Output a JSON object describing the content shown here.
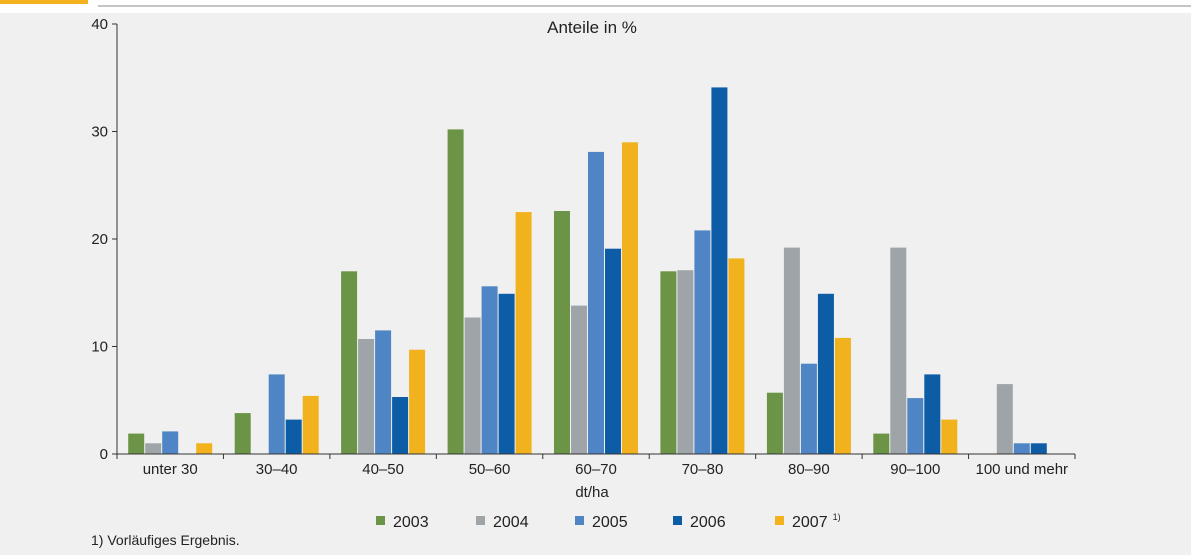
{
  "chart_data": {
    "type": "bar",
    "title": "Anteile in %",
    "xlabel": "dt/ha",
    "ylabel": "",
    "ylim": [
      0,
      40
    ],
    "yticks": [
      0,
      10,
      20,
      30,
      40
    ],
    "categories": [
      "unter 30",
      "30–40",
      "40–50",
      "50–60",
      "60–70",
      "70–80",
      "80–90",
      "90–100",
      "100 und mehr"
    ],
    "series": [
      {
        "name": "2003",
        "color": "#6b9446",
        "values": [
          1.9,
          3.8,
          17.0,
          30.2,
          22.6,
          17.0,
          5.7,
          1.9,
          0
        ]
      },
      {
        "name": "2004",
        "color": "#9fa4a8",
        "values": [
          1.0,
          0,
          10.7,
          12.7,
          13.8,
          17.1,
          19.2,
          19.2,
          6.5
        ]
      },
      {
        "name": "2005",
        "color": "#4f85c4",
        "values": [
          2.1,
          7.4,
          11.5,
          15.6,
          28.1,
          20.8,
          8.4,
          5.2,
          1.0
        ]
      },
      {
        "name": "2006",
        "color": "#0d5da6",
        "values": [
          0,
          3.2,
          5.3,
          14.9,
          19.1,
          34.1,
          14.9,
          7.4,
          1.0
        ]
      },
      {
        "name": "2007",
        "sup": "1)",
        "color": "#f2b21d",
        "values": [
          1.0,
          5.4,
          9.7,
          22.5,
          29.0,
          18.2,
          10.8,
          3.2,
          0
        ]
      }
    ],
    "legend_position": "bottom",
    "grid": false,
    "footnote": "1) Vorläufiges Ergebnis."
  },
  "colors": {
    "accent": "#f2b21d",
    "axis": "#333333",
    "background": "#f0f0f1"
  }
}
